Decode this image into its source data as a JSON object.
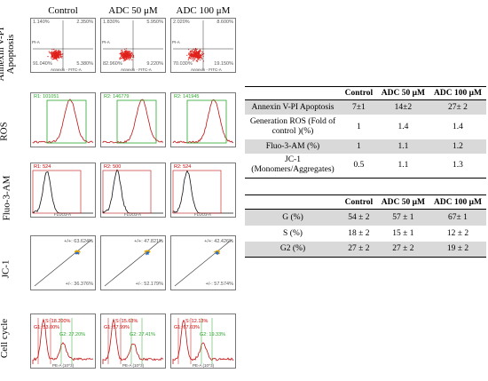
{
  "columns": [
    "Control",
    "ADC 50 μM",
    "ADC 100 μM"
  ],
  "rows": [
    "Annexin V-PI Apoptosis",
    "ROS",
    "Fluo-3-AM",
    "JC-1",
    "Cell cycle"
  ],
  "apoptosis_quadrants": [
    {
      "ul": "1.140%",
      "ur": "2.350%",
      "ll": "91.040%",
      "lr": "5.380%"
    },
    {
      "ul": "1.830%",
      "ur": "5.950%",
      "ll": "82.960%",
      "lr": "9.220%"
    },
    {
      "ul": "2.020%",
      "ur": "8.600%",
      "ll": "70.030%",
      "lr": "19.150%"
    }
  ],
  "apoptosis_axes": {
    "y": "PI-A",
    "x": "Annexin - FITC-A"
  },
  "ros_gates": [
    "R1: 101051",
    "R2: 146779",
    "R2: 141945"
  ],
  "fluo_gates": [
    "R1: 524",
    "R2: 500",
    "R2: 524"
  ],
  "fluo_xlabel": "FLUO3-A",
  "jc1": [
    {
      "upper": "+/+: 63.624%",
      "lower": "+/-: 36.376%"
    },
    {
      "upper": "+/+: 47.821%",
      "lower": "+/-: 52.179%"
    },
    {
      "upper": "+/+: 42.426%",
      "lower": "+/-: 57.574%"
    }
  ],
  "cycle": [
    {
      "g1": "G1: 53.00%",
      "s": "S: 18.200%",
      "g2": "G2: 27.20%"
    },
    {
      "g1": "G1: 57.99%",
      "s": "S: 15.63%",
      "g2": "G2: 27.41%"
    },
    {
      "g1": "G1: 67.03%",
      "s": "S: 12.13%",
      "g2": "G2: 19.33%"
    }
  ],
  "cycle_xlabel": "PE-A (10^3)",
  "table1": {
    "header": [
      "",
      "Control",
      "ADC 50 μM",
      "ADC 100 μM"
    ],
    "rows": [
      [
        "Annexin V-PI Apoptosis",
        "7±1",
        "14±2",
        "27± 2"
      ],
      [
        "Generation ROS (Fold of control )(%)",
        "1",
        "1.4",
        "1.4"
      ],
      [
        "Fluo-3-AM (%)",
        "1",
        "1.1",
        "1.2"
      ],
      [
        "JC-1 (Monomers/Aggregates)",
        "0.5",
        "1.1",
        "1.3"
      ]
    ]
  },
  "table2": {
    "header": [
      "",
      "Control",
      "ADC 50 μM",
      "ADC 100 μM"
    ],
    "rows": [
      [
        "G (%)",
        "54 ± 2",
        "57 ± 1",
        "67± 1"
      ],
      [
        "S (%)",
        "18 ± 2",
        "15 ± 1",
        "12 ± 2"
      ],
      [
        "G2 (%)",
        "27 ± 2",
        "27 ± 2",
        "19 ± 2"
      ]
    ]
  },
  "colors": {
    "dots": "#e0201b",
    "gate": "#2aa52a",
    "curve": "#c01010",
    "jcdots": "#e6a800"
  }
}
